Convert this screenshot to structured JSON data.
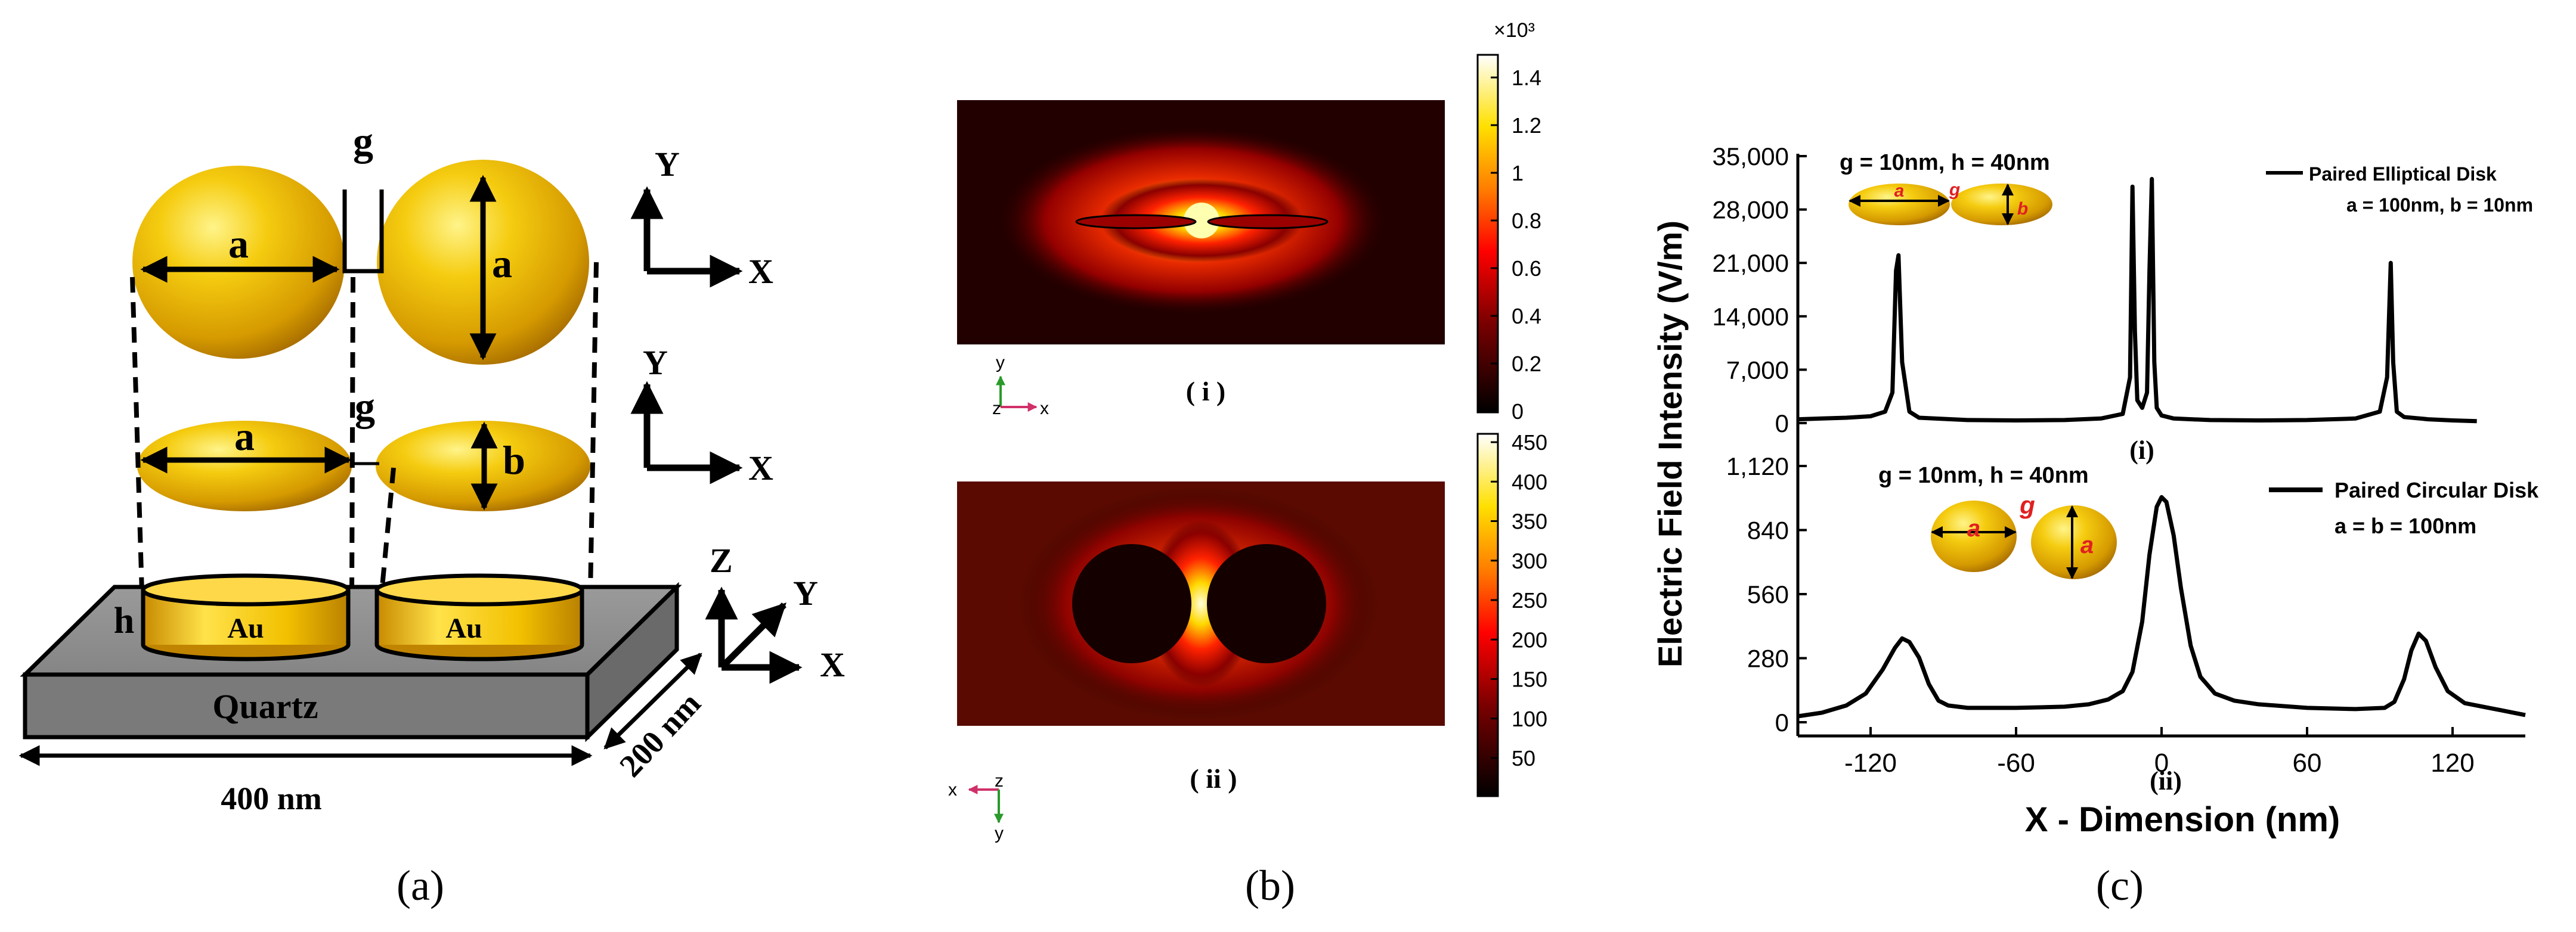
{
  "panel_labels": {
    "a": "(a)",
    "b": "(b)",
    "c": "(c)"
  },
  "colors": {
    "gold": "#e8b800",
    "gold_light": "#fff06a",
    "gold_dark": "#b07a00",
    "quartz": "#8c8c8c",
    "red_label": "#e02020",
    "curve": "#000000"
  },
  "panel_a": {
    "gap_top": "g",
    "gap_mid": "g",
    "top_left_axis": "a",
    "top_right_axis": "a",
    "mid_left_axis": "a",
    "mid_right_axis": "b",
    "height_label": "h",
    "disk_left": "Au",
    "disk_right": "Au",
    "substrate": "Quartz",
    "width_dim": "400 nm",
    "depth_dim": "200 nm",
    "axes_top": {
      "y": "Y",
      "x": "X"
    },
    "axes_mid": {
      "y": "Y",
      "x": "X"
    },
    "axes_3d": {
      "z": "Z",
      "y": "Y",
      "x": "X"
    }
  },
  "panel_b": {
    "map_i_label": "( i )",
    "map_ii_label": "( ii )",
    "triad_i": {
      "y": "y",
      "z": "z",
      "x": "x"
    },
    "triad_ii": {
      "x": "x",
      "z": "z",
      "y": "y"
    },
    "colorbar_i": {
      "multiplier": "×10³",
      "ticks": [
        "1.4",
        "1.2",
        "1",
        "0.8",
        "0.6",
        "0.4",
        "0.2",
        "0"
      ]
    },
    "colorbar_ii": {
      "ticks": [
        "450",
        "400",
        "350",
        "300",
        "250",
        "200",
        "150",
        "100",
        "50"
      ]
    }
  },
  "chart_data": [
    {
      "type": "line",
      "panel": "(c)(i)",
      "annotation": "g = 10nm, h = 40nm",
      "legend": "Paired Elliptical Disk",
      "legend_sub": "a = 100nm, b = 10nm",
      "inset_labels": {
        "a": "a",
        "g": "g",
        "b": "b"
      },
      "yticks": [
        "35,000",
        "28,000",
        "21,000",
        "14,000",
        "7,000",
        "0"
      ],
      "ylim": [
        0,
        35000
      ],
      "panel_label": "(i)",
      "series": [
        {
          "name": "Paired Elliptical Disk",
          "x": [
            -150,
            -140,
            -130,
            -120,
            -114,
            -111,
            -109.5,
            -108.5,
            -107,
            -104,
            -100,
            -80,
            -60,
            -40,
            -25,
            -16,
            -13,
            -12,
            -11,
            -10,
            -8,
            -6,
            -5,
            -4,
            -3,
            -2,
            0,
            5,
            20,
            40,
            60,
            80,
            90,
            93,
            94.5,
            95.5,
            97,
            100,
            110,
            120,
            130
          ],
          "y": [
            500,
            600,
            700,
            900,
            1500,
            4000,
            20000,
            22000,
            8000,
            1500,
            700,
            400,
            350,
            400,
            600,
            1200,
            6000,
            31000,
            12000,
            3000,
            2000,
            4000,
            20000,
            32000,
            8000,
            2000,
            1000,
            600,
            400,
            350,
            400,
            600,
            1500,
            6000,
            21000,
            8000,
            1500,
            800,
            500,
            350,
            250
          ]
        }
      ]
    },
    {
      "type": "line",
      "panel": "(c)(ii)",
      "annotation": "g = 10nm, h = 40nm",
      "legend": "Paired Circular Disk",
      "legend_sub": "a = b = 100nm",
      "inset_labels": {
        "a1": "a",
        "g": "g",
        "a2": "a"
      },
      "yticks": [
        "1,120",
        "840",
        "560",
        "280",
        "0"
      ],
      "ylim": [
        0,
        1120
      ],
      "xticks": [
        "-120",
        "-60",
        "0",
        "60",
        "120"
      ],
      "xlim": [
        -150,
        150
      ],
      "xlabel": "X - Dimension (nm)",
      "ylabel": "Electric Field Intensity (V/m)",
      "panel_label": "(ii)",
      "series": [
        {
          "name": "Paired Circular Disk",
          "x": [
            -150,
            -140,
            -130,
            -122,
            -115,
            -110,
            -107,
            -104,
            -100,
            -96,
            -92,
            -88,
            -80,
            -60,
            -40,
            -30,
            -22,
            -16,
            -12,
            -8,
            -5,
            -2,
            0,
            2,
            5,
            8,
            12,
            16,
            22,
            30,
            40,
            60,
            80,
            92,
            96,
            100,
            103,
            106,
            109,
            113,
            118,
            125,
            135,
            145,
            150
          ],
          "y": [
            25,
            40,
            70,
            120,
            220,
            310,
            350,
            335,
            270,
            160,
            90,
            70,
            60,
            60,
            65,
            75,
            95,
            130,
            210,
            420,
            700,
            900,
            940,
            920,
            780,
            560,
            320,
            190,
            120,
            90,
            75,
            60,
            55,
            60,
            85,
            180,
            300,
            370,
            340,
            230,
            130,
            80,
            60,
            40,
            30
          ]
        }
      ]
    }
  ]
}
